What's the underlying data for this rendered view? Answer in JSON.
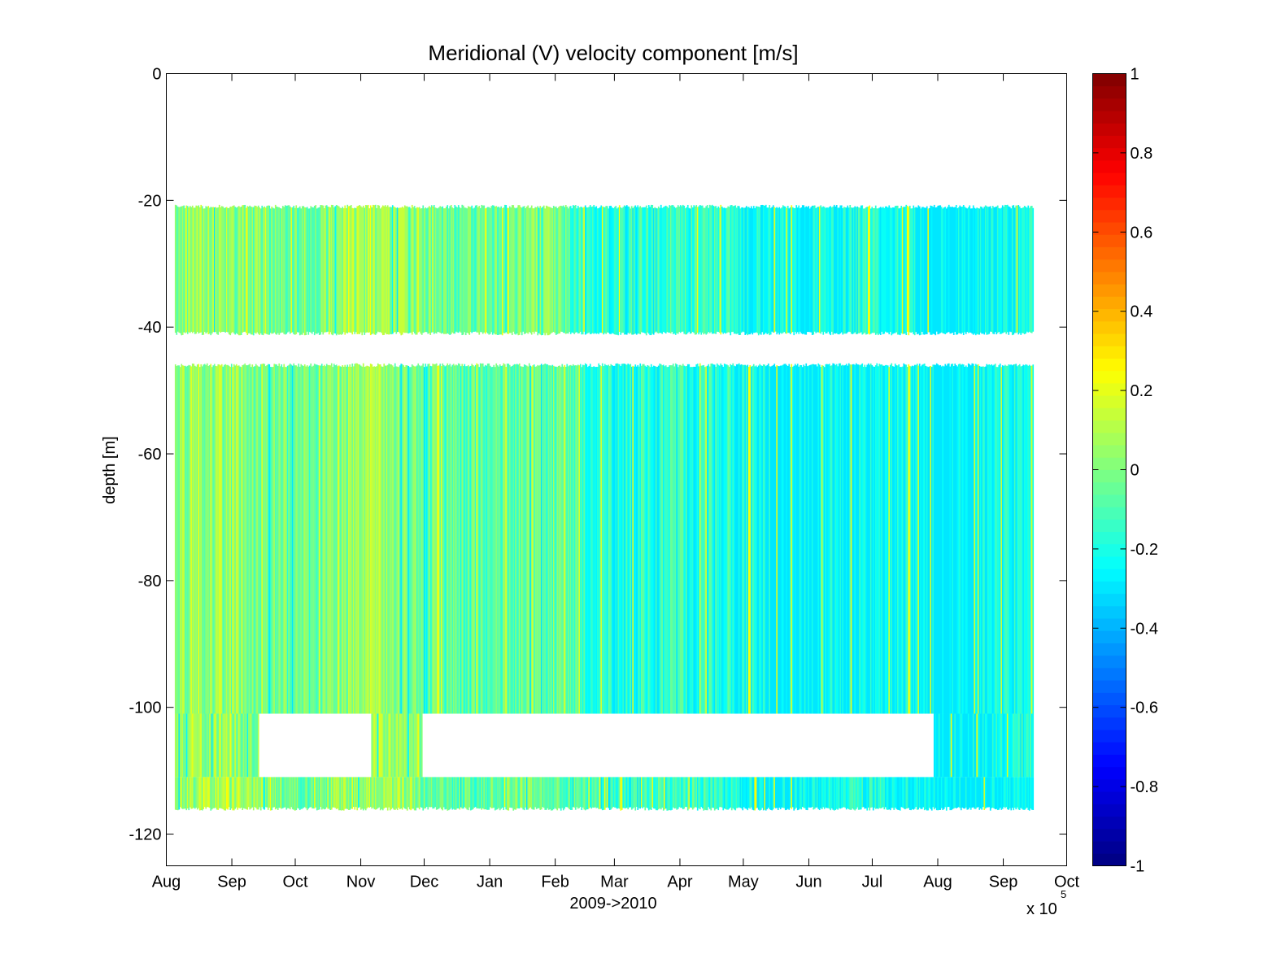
{
  "chart_data": {
    "type": "heatmap",
    "title": "Meridional (V) velocity component [m/s]",
    "xlabel": "2009->2010",
    "ylabel": "depth [m]",
    "x_exponent_label": "x 10",
    "x_exponent_power": "5",
    "x_ticks": [
      "Aug",
      "Sep",
      "Oct",
      "Nov",
      "Dec",
      "Jan",
      "Feb",
      "Mar",
      "Apr",
      "May",
      "Jun",
      "Jul",
      "Aug",
      "Sep",
      "Oct"
    ],
    "x_tick_dates": [
      "2009-08-01",
      "2009-09-01",
      "2009-10-01",
      "2009-11-01",
      "2009-12-01",
      "2010-01-01",
      "2010-02-01",
      "2010-03-01",
      "2010-04-01",
      "2010-05-01",
      "2010-06-01",
      "2010-07-01",
      "2010-08-01",
      "2010-09-01",
      "2010-10-01"
    ],
    "xlim": [
      "2009-08-01",
      "2010-10-01"
    ],
    "y_ticks": [
      "0",
      "-20",
      "-40",
      "-60",
      "-80",
      "-100",
      "-120"
    ],
    "y_tick_values": [
      0,
      -20,
      -40,
      -60,
      -80,
      -100,
      -120
    ],
    "ylim": [
      -125,
      0
    ],
    "colorbar": {
      "ticks": [
        "1",
        "0.8",
        "0.6",
        "0.4",
        "0.2",
        "0",
        "-0.2",
        "-0.4",
        "-0.6",
        "-0.8",
        "-1"
      ],
      "tick_values": [
        1,
        0.8,
        0.6,
        0.4,
        0.2,
        0,
        -0.2,
        -0.4,
        -0.6,
        -0.8,
        -1
      ],
      "clim": [
        -1,
        1
      ],
      "colormap": "jet",
      "levels": 64
    },
    "data_start": "2009-08-05",
    "data_end": "2010-09-15",
    "value_range": [
      -0.3,
      0.25
    ],
    "bins": [
      {
        "depth_top": -21,
        "depth_bottom": -41
      },
      {
        "depth_top": -46,
        "depth_bottom": -101
      },
      {
        "depth_top": -101,
        "depth_bottom": -111
      },
      {
        "depth_top": -111,
        "depth_bottom": -116
      }
    ],
    "data_gaps": [
      {
        "start": "2009-09-14",
        "end": "2009-11-06",
        "depth_top": -101,
        "depth_bottom": -111
      },
      {
        "start": "2009-11-30",
        "end": "2010-07-30",
        "depth_top": -101,
        "depth_bottom": -111
      }
    ],
    "grid": false
  }
}
